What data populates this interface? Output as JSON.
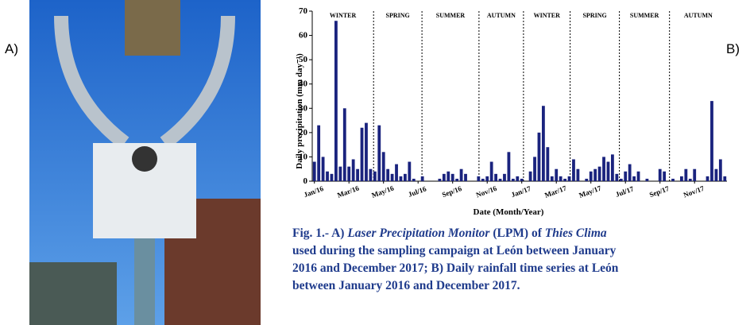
{
  "panel_labels": [
    "A)",
    "B)"
  ],
  "chart_data": {
    "type": "bar",
    "y_label": "Daily precipitation (mm day⁻¹)",
    "x_label": "Date (Month/Year)",
    "annotations": [
      "WINTER",
      "SPRING",
      "SUMMER",
      "AUTUMN",
      "WINTER",
      "SPRING",
      "SUMMER",
      "AUTUMN"
    ],
    "categories": [
      "Jan/16",
      null,
      null,
      null,
      null,
      null,
      null,
      null,
      "Mar/16",
      null,
      null,
      null,
      null,
      null,
      null,
      null,
      "May/16",
      null,
      null,
      null,
      null,
      null,
      null,
      null,
      "Jul/16",
      null,
      null,
      null,
      null,
      null,
      null,
      null,
      "Sep/16",
      null,
      null,
      null,
      null,
      null,
      null,
      null,
      "Nov/16",
      null,
      null,
      null,
      null,
      null,
      null,
      null,
      "Jan/17",
      null,
      null,
      null,
      null,
      null,
      null,
      null,
      "Mar/17",
      null,
      null,
      null,
      null,
      null,
      null,
      null,
      "May/17",
      null,
      null,
      null,
      null,
      null,
      null,
      null,
      "Jul/17",
      null,
      null,
      null,
      null,
      null,
      null,
      null,
      "Sep/17",
      null,
      null,
      null,
      null,
      null,
      null,
      null,
      "Nov/17",
      null,
      null,
      null,
      null,
      null,
      null,
      null
    ],
    "values": [
      8,
      23,
      10,
      4,
      3,
      66,
      6,
      30,
      6,
      9,
      5,
      22,
      24,
      5,
      4,
      23,
      12,
      5,
      3,
      7,
      2,
      3,
      8,
      1,
      0,
      2,
      0,
      0,
      0,
      1,
      3,
      4,
      3,
      1,
      5,
      3,
      0,
      0,
      2,
      1,
      2,
      8,
      3,
      1,
      3,
      12,
      1,
      2,
      1,
      0,
      4,
      10,
      20,
      31,
      14,
      2,
      5,
      2,
      1,
      2,
      9,
      5,
      0,
      1,
      4,
      5,
      6,
      10,
      8,
      11,
      3,
      1,
      4,
      7,
      2,
      4,
      0,
      1,
      0,
      0,
      5,
      4,
      0,
      1,
      0,
      2,
      5,
      1,
      5,
      0,
      0,
      2,
      33,
      5,
      9,
      2
    ],
    "color": "#1a237e",
    "ylim": [
      0,
      70
    ],
    "yticks": [
      0,
      10,
      20,
      30,
      40,
      50,
      60,
      70
    ]
  },
  "caption": [
    "Fig. 1.- A) ",
    "Laser Precipitation Monitor",
    " (LPM) of ",
    "Thies Clima",
    "used during the sampling campaign at León between January",
    "2016 and December 2017; B) Daily rainfall time series at León",
    "between January 2016 and December 2017."
  ]
}
